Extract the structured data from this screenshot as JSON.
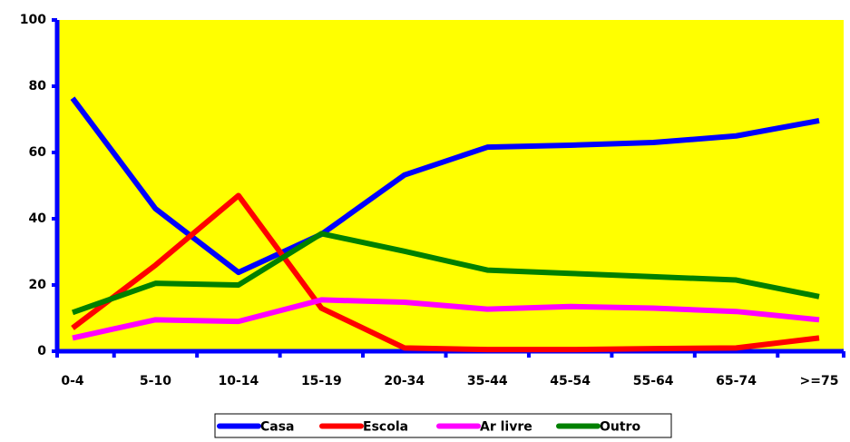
{
  "chart_data": {
    "type": "line",
    "categories": [
      "0-4",
      "5-10",
      "10-14",
      "15-19",
      "20-34",
      "35-44",
      "45-54",
      "55-64",
      "65-74",
      ">=75"
    ],
    "series": [
      {
        "name": "Casa",
        "color": "#0000ff",
        "values": [
          76.4,
          43,
          23.8,
          35.3,
          53.2,
          61.6,
          62.2,
          63,
          65,
          69.6
        ]
      },
      {
        "name": "Escola",
        "color": "#ff0000",
        "values": [
          7,
          26,
          47,
          13,
          1,
          0.5,
          0.5,
          0.8,
          1,
          4
        ]
      },
      {
        "name": "Ar livre",
        "color": "#ff00ff",
        "values": [
          4,
          9.5,
          9,
          15.5,
          14.8,
          12.7,
          13.5,
          13,
          12,
          9.5
        ]
      },
      {
        "name": "Outro",
        "color": "#008000",
        "values": [
          11.7,
          20.5,
          20,
          35.5,
          30.2,
          24.5,
          23.5,
          22.5,
          21.5,
          16.5
        ]
      }
    ],
    "ylim": [
      0,
      100
    ],
    "yticks": [
      0,
      20,
      40,
      60,
      80,
      100
    ],
    "plot_background": "#ffff00",
    "axis_color": "#0000ff",
    "legend": "bottom"
  }
}
